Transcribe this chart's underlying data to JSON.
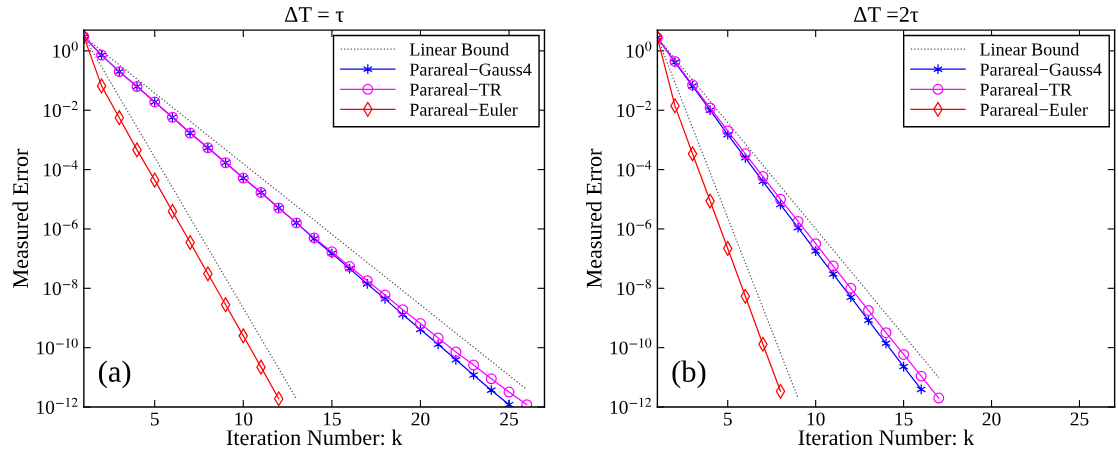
{
  "chart_data": [
    {
      "type": "line",
      "title": "ΔT = τ",
      "xlabel": "Iteration Number: k",
      "ylabel": "Measured Error",
      "log": "y",
      "legend": "top right",
      "grid": false,
      "xlim": [
        1,
        27
      ],
      "xticks": [
        5,
        10,
        15,
        20,
        25
      ],
      "ylim": [
        1e-12,
        5
      ],
      "yticks": [
        {
          "value": 1e-12,
          "label": "10$^{−12}$"
        },
        {
          "value": 1e-10,
          "label": "10$^{−10}$"
        },
        {
          "value": 1e-08,
          "label": "10$^{−8}$"
        },
        {
          "value": 1e-06,
          "label": "10$^{−6}$"
        },
        {
          "value": 0.0001,
          "label": "10$^{−4}$"
        },
        {
          "value": 0.01,
          "label": "10$^{−2}$"
        },
        {
          "value": 1,
          "label": "10$^{0}$"
        }
      ],
      "annotations": [
        "(a)"
      ],
      "series": [
        {
          "name": "Linear Bound",
          "color": "#555555",
          "marker": "none",
          "line_style": "dotted",
          "x": [
            1,
            26
          ],
          "values": [
            3.0,
            3.9e-12
          ]
        },
        {
          "color": "#555555",
          "marker": "none",
          "line_style": "dotted",
          "x": [
            1,
            13
          ],
          "values": [
            3.0,
            1.9e-12
          ]
        },
        {
          "name": "Parareal−Gauss4",
          "color": "#0000ff",
          "marker": "cross",
          "line_style": "solid",
          "x": [
            1,
            2,
            3,
            4,
            5,
            6,
            7,
            8,
            9,
            10,
            11,
            12,
            13,
            14,
            15,
            16,
            17,
            18,
            19,
            20,
            21,
            22,
            23,
            24,
            25
          ],
          "values": [
            3.0,
            0.72,
            0.2,
            0.063,
            0.019,
            0.0058,
            0.0017,
            0.00054,
            0.00017,
            5.2e-05,
            1.7e-05,
            5.1e-06,
            1.6e-06,
            4.7e-07,
            1.5e-07,
            4.6e-08,
            1.4e-08,
            4.4e-09,
            1.3e-09,
            4.1e-10,
            1.3e-10,
            3.9e-11,
            1.2e-11,
            3.7e-12,
            1.2e-12
          ]
        },
        {
          "name": "Parareal−TR",
          "color": "#ff00ff",
          "marker": "circle",
          "line_style": "solid",
          "x": [
            1,
            2,
            3,
            4,
            5,
            6,
            7,
            8,
            9,
            10,
            11,
            12,
            13,
            14,
            15,
            16,
            17,
            18,
            19,
            20,
            21,
            22,
            23,
            24,
            25,
            26
          ],
          "values": [
            3.0,
            0.72,
            0.2,
            0.063,
            0.019,
            0.0058,
            0.0017,
            0.00054,
            0.00017,
            5.2e-05,
            1.7e-05,
            5.1e-06,
            1.6e-06,
            5e-07,
            1.7e-07,
            5.4e-08,
            1.8e-08,
            5.9e-09,
            1.9e-09,
            6.5e-10,
            2.1e-10,
            7.2e-11,
            2.6e-11,
            8.9e-12,
            3.2e-12,
            1.2e-12
          ]
        },
        {
          "name": "Parareal−Euler",
          "color": "#ff0000",
          "marker": "diamond",
          "line_style": "solid",
          "x": [
            1,
            2,
            3,
            4,
            5,
            6,
            7,
            8,
            9,
            10,
            11,
            12
          ],
          "values": [
            3.0,
            0.066,
            0.0056,
            0.00046,
            4.4e-05,
            3.9e-06,
            3.5e-07,
            3.1e-08,
            2.8e-09,
            2.5e-10,
            2.2e-11,
            1.9e-12
          ]
        }
      ]
    },
    {
      "type": "line",
      "title": "ΔT =2τ",
      "xlabel": "Iteration Number: k",
      "ylabel": "Measured Error",
      "log": "y",
      "legend": "top right",
      "grid": false,
      "xlim": [
        1,
        27
      ],
      "xticks": [
        5,
        10,
        15,
        20,
        25
      ],
      "ylim": [
        1e-12,
        5
      ],
      "yticks": [
        {
          "value": 1e-12,
          "label": "10$^{−12}$"
        },
        {
          "value": 1e-10,
          "label": "10$^{−10}$"
        },
        {
          "value": 1e-08,
          "label": "10$^{−8}$"
        },
        {
          "value": 1e-06,
          "label": "10$^{−6}$"
        },
        {
          "value": 0.0001,
          "label": "10$^{−4}$"
        },
        {
          "value": 0.01,
          "label": "10$^{−2}$"
        },
        {
          "value": 1,
          "label": "10$^{0}$"
        }
      ],
      "annotations": [
        "(b)"
      ],
      "series": [
        {
          "name": "Linear Bound",
          "color": "#555555",
          "marker": "none",
          "line_style": "dotted",
          "x": [
            1,
            17
          ],
          "values": [
            2.8,
            9.8e-12
          ]
        },
        {
          "color": "#555555",
          "marker": "none",
          "line_style": "dotted",
          "x": [
            1,
            9
          ],
          "values": [
            2.8,
            2e-12
          ]
        },
        {
          "name": "Parareal−Gauss4",
          "color": "#0000ff",
          "marker": "cross",
          "line_style": "solid",
          "x": [
            1,
            2,
            3,
            4,
            5,
            6,
            7,
            8,
            9,
            10,
            11,
            12,
            13,
            14,
            15,
            16
          ],
          "values": [
            2.8,
            0.41,
            0.065,
            0.01,
            0.0015,
            0.00025,
            4e-05,
            6.6e-06,
            1.1e-06,
            1.8e-07,
            3e-08,
            5e-09,
            8.3e-10,
            1.4e-10,
            2.3e-11,
            3.9e-12
          ]
        },
        {
          "name": "Parareal−TR",
          "color": "#ff00ff",
          "marker": "circle",
          "line_style": "solid",
          "x": [
            1,
            2,
            3,
            4,
            5,
            6,
            7,
            8,
            9,
            10,
            11,
            12,
            13,
            14,
            15,
            16,
            17
          ],
          "values": [
            2.8,
            0.44,
            0.072,
            0.012,
            0.002,
            0.00034,
            5.8e-05,
            1e-05,
            1.8e-06,
            3.2e-07,
            5.6e-08,
            1e-08,
            1.8e-09,
            3.2e-10,
            5.9e-11,
            1.1e-11,
            2e-12
          ]
        },
        {
          "name": "Parareal−Euler",
          "color": "#ff0000",
          "marker": "diamond",
          "line_style": "solid",
          "x": [
            1,
            2,
            3,
            4,
            5,
            6,
            7,
            8
          ],
          "values": [
            2.8,
            0.014,
            0.00034,
            8.7e-06,
            2.2e-07,
            5.4e-09,
            1.3e-10,
            3.4e-12
          ]
        }
      ]
    }
  ]
}
